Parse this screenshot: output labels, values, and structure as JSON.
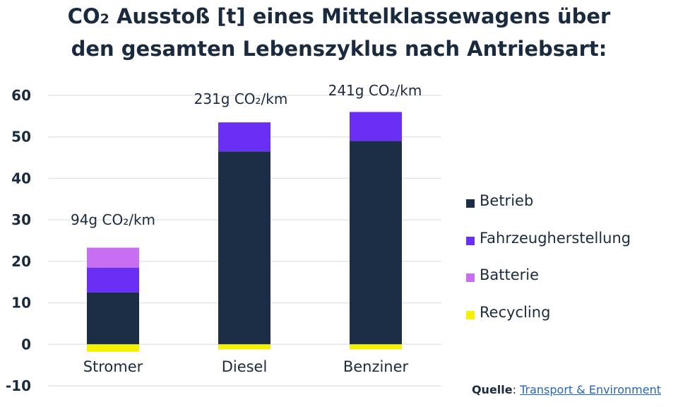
{
  "title": {
    "line1_pre": "CO",
    "line1_sub": "2",
    "line1_post": " Ausstoß [t] eines Mittelklassewagens über",
    "line2": "den gesamten Lebenszyklus nach Antriebsart:"
  },
  "source": {
    "label": "Quelle",
    "separator": ": ",
    "link_text": "Transport & Environment"
  },
  "chart_data": {
    "type": "bar",
    "stacked": true,
    "categories": [
      "Stromer",
      "Diesel",
      "Benziner"
    ],
    "series": [
      {
        "name": "Betrieb",
        "values": [
          12.5,
          46.5,
          49
        ],
        "color": "#1b2e45"
      },
      {
        "name": "Fahrzeugherstellung",
        "values": [
          6,
          7,
          7
        ],
        "color": "#6a2ff5"
      },
      {
        "name": "Batterie",
        "values": [
          4.8,
          0,
          0
        ],
        "color": "#c86ef3"
      },
      {
        "name": "Recycling",
        "values": [
          -1.8,
          -1.2,
          -1.2
        ],
        "color": "#f4f200"
      }
    ],
    "annotations": [
      "94g CO₂/km",
      "231g CO₂/km",
      "241g CO₂/km"
    ],
    "ylim": [
      -10,
      60
    ],
    "yticks": [
      60,
      50,
      40,
      30,
      20,
      10,
      0,
      -10
    ],
    "grid": true,
    "legend_position": "right",
    "title": "",
    "xlabel": "",
    "ylabel": ""
  }
}
